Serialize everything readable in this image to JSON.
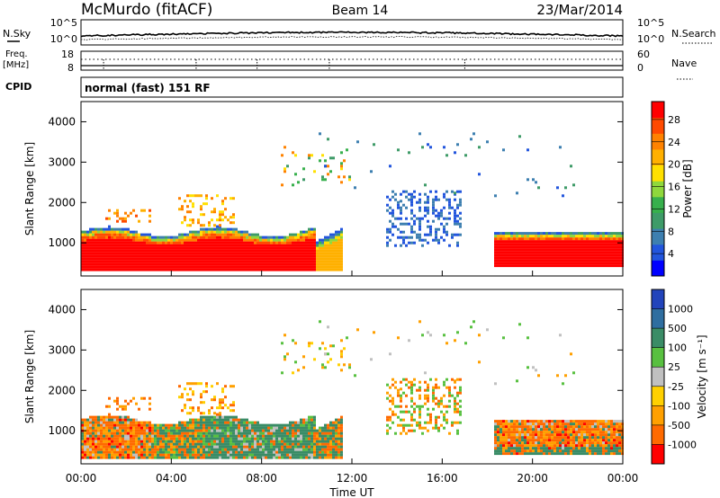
{
  "header": {
    "station": "McMurdo (fitACF)",
    "beam": "Beam 14",
    "date": "23/Mar/2014"
  },
  "summary": {
    "nsky_label": "N.Sky",
    "nsky_ticks": [
      "10^5",
      "10^0"
    ],
    "nsearch_label": "N.Search",
    "nsearch_ticks": [
      "10^5",
      "10^0"
    ],
    "freq_label": "Freq.",
    "freq_unit": "[MHz]",
    "freq_ticks": [
      "18",
      "8"
    ],
    "nave_label": "Nave",
    "nave_ticks": [
      "60",
      "0"
    ],
    "cpid_label": "CPID",
    "cpid_value": "normal (fast) 151 RF"
  },
  "chart_data": [
    {
      "type": "heatmap",
      "name": "power",
      "ylabel": "Slant Range [km]",
      "xlabel": "Time UT",
      "xlim": [
        0,
        24
      ],
      "ylim": [
        180,
        4500
      ],
      "y_ticks": [
        "1000",
        "2000",
        "3000",
        "4000"
      ],
      "x_ticks": [
        "00:00",
        "04:00",
        "08:00",
        "12:00",
        "16:00",
        "20:00",
        "00:00"
      ],
      "colorbar": {
        "label": "Power [dB]",
        "ticks": [
          "4",
          "8",
          "12",
          "16",
          "20",
          "24",
          "28"
        ],
        "colors": [
          "#0000ff",
          "#2255dd",
          "#3d7fb0",
          "#3e9b68",
          "#37b04c",
          "#8fd83c",
          "#ffe000",
          "#ffb000",
          "#ff8200",
          "#ff4a00",
          "#ff0000"
        ]
      }
    },
    {
      "type": "heatmap",
      "name": "velocity",
      "ylabel": "Slant Range [km]",
      "xlabel": "Time UT",
      "xlim": [
        0,
        24
      ],
      "ylim": [
        180,
        4500
      ],
      "y_ticks": [
        "1000",
        "2000",
        "3000",
        "4000"
      ],
      "x_ticks": [
        "00:00",
        "04:00",
        "08:00",
        "12:00",
        "16:00",
        "20:00",
        "00:00"
      ],
      "colorbar": {
        "label": "Velocity [m s⁻¹]",
        "ticks": [
          "1000",
          "500",
          "100",
          "25",
          "-25",
          "-100",
          "-500",
          "-1000"
        ],
        "colors": [
          "#2244bb",
          "#2f6ea0",
          "#3a8c66",
          "#58c040",
          "#c0c0c0",
          "#ffd000",
          "#ffa000",
          "#ff6a00",
          "#ff0000"
        ]
      }
    }
  ],
  "xaxis_title": "Time UT"
}
